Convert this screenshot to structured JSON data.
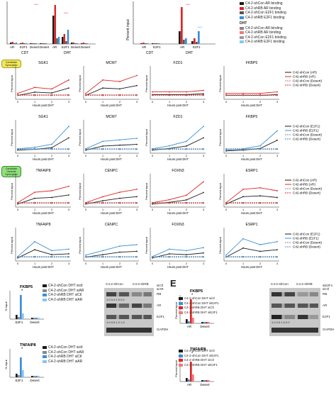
{
  "bar_top_left": {
    "cats": [
      "AR",
      "E2F1",
      "Desert",
      "Desert",
      "AR",
      "E2F1",
      "Desert",
      "Desert"
    ],
    "groups": [
      "CDT",
      "DHT"
    ],
    "stars": [
      "****",
      "****"
    ]
  },
  "bar_top_mid": {
    "ylabel": "Percent input",
    "cats": [
      "AR",
      "E2F1",
      "AR",
      "E2F1"
    ],
    "groups": [
      "CDT",
      "DHT"
    ],
    "stars": [
      "****",
      "****"
    ]
  },
  "legend_top": {
    "heading": "DHT",
    "items": [
      {
        "label": "C4-2-shCon AR binding",
        "color": "#1a1a1a"
      },
      {
        "label": "C4-2-shRB AR binding",
        "color": "#e02424"
      },
      {
        "label": "C4-2-shCon E2F1 binding",
        "color": "#555555"
      },
      {
        "label": "C4-2-shRB E2F1 binding",
        "color": "#3a8fd9"
      },
      {
        "label": "C4-2-shCon AR binding",
        "color": "#888888"
      },
      {
        "label": "C4-2-shRB AR binding",
        "color": "#f07a7a"
      },
      {
        "label": "C4-2-shCon E2F1 binding",
        "color": "#9a9a9a"
      },
      {
        "label": "C4-2-shRB E2F1 binding",
        "color": "#8cc4ef"
      }
    ]
  },
  "badges": {
    "top": "Candidate Synergistic",
    "mid": "Candidate Vanerial Synergistic"
  },
  "line_common": {
    "xlabel": "Hours post DHT",
    "ylabel": "Percent input",
    "xticks": [
      "0",
      "1",
      "2",
      "3"
    ]
  },
  "rows": [
    {
      "titles": [
        "SGK1",
        "MCM7",
        "FZD1",
        "FKBP5"
      ],
      "colors": [
        "#1a1a1a",
        "#e02424"
      ],
      "legend": [
        "C42-shCon (AR)",
        "C42-shRB (AR)",
        "C42-shCon (Desert)",
        "C42-shRB (Desert)"
      ]
    },
    {
      "titles": [
        "SGK1",
        "MCM7",
        "FZD1",
        "FKBP5"
      ],
      "colors": [
        "#1a1a1a",
        "#3a8fd9"
      ],
      "legend": [
        "C42-shCon (E2F1)",
        "C42-shRB (E2F1)",
        "C42-shCon (Desert)",
        "C42-shRB (Desert)"
      ]
    },
    {
      "titles": [
        "TNFAIP8",
        "CENPC",
        "FOXN3",
        "ESRP1"
      ],
      "colors": [
        "#1a1a1a",
        "#e02424"
      ],
      "legend": [
        "C42-shCon (AR)",
        "C42-shRB (AR)",
        "C42-shCon (Desert)",
        "C42-shRB (Desert)"
      ]
    },
    {
      "titles": [
        "TNFAIP8",
        "CENPC",
        "FOXN3",
        "ESRP1"
      ],
      "colors": [
        "#1a1a1a",
        "#3a8fd9"
      ],
      "legend": [
        "C42-shCon (E2F1)",
        "C42-shRB (E2F1)",
        "C42-shCon (Desert)",
        "C42-shRB (Desert)"
      ]
    }
  ],
  "panel_D": {
    "fkbp5_title": "FKBP5",
    "tnfaip8_title": "TNFAIP8",
    "cats": [
      "E2F1",
      "Desert"
    ],
    "ylabel": "% input",
    "legend": [
      "C4-2-shCon DHT sictl",
      "C4-2-shCon DHT siAR",
      "C4-2-shRB DHT siCtl",
      "C4-2-shRB DHT siAR"
    ],
    "colors": [
      "#1a1a1a",
      "#888888",
      "#3a8fd9",
      "#8cc4ef"
    ],
    "star": "*",
    "blot_headers": [
      "C4-2-shCon",
      "C4-2-shRB"
    ],
    "blot_side": [
      "siCtl",
      "siAR"
    ],
    "blot_rows": [
      "RB",
      "AR",
      "E2F1",
      "GAPDH"
    ],
    "quant1": [
      "1.0",
      "0.4",
      "1.0",
      "0.2"
    ],
    "quant2": [
      "1.0",
      "0.9",
      "1.2",
      "1.3"
    ]
  },
  "panel_E": {
    "label": "E",
    "fkbp5_title": "FKBP5",
    "tnfaip8_title": "TNFAIP8",
    "cats": [
      "AR",
      "Desert"
    ],
    "ylabel": "Percent input",
    "legend": [
      "C4-2-shCon DHT sictl",
      "C4-2-shCon DHT siE2F1",
      "C4-2-shRB DHT siCtl",
      "C4-2-shRB DHT siE2F1"
    ],
    "colors": [
      "#1a1a1a",
      "#3a8fd9",
      "#e02424",
      "#f07a7a"
    ],
    "star": "*",
    "blot_headers": [
      "C4-2-shCon",
      "C4-2-shRB"
    ],
    "blot_side": [
      "siE2F1",
      "siCtl"
    ],
    "blot_rows": [
      "RB",
      "AR",
      "E2F1",
      "GAPDH"
    ],
    "quant": [
      "1.0",
      "0.3",
      "1.0",
      "0.2"
    ]
  }
}
